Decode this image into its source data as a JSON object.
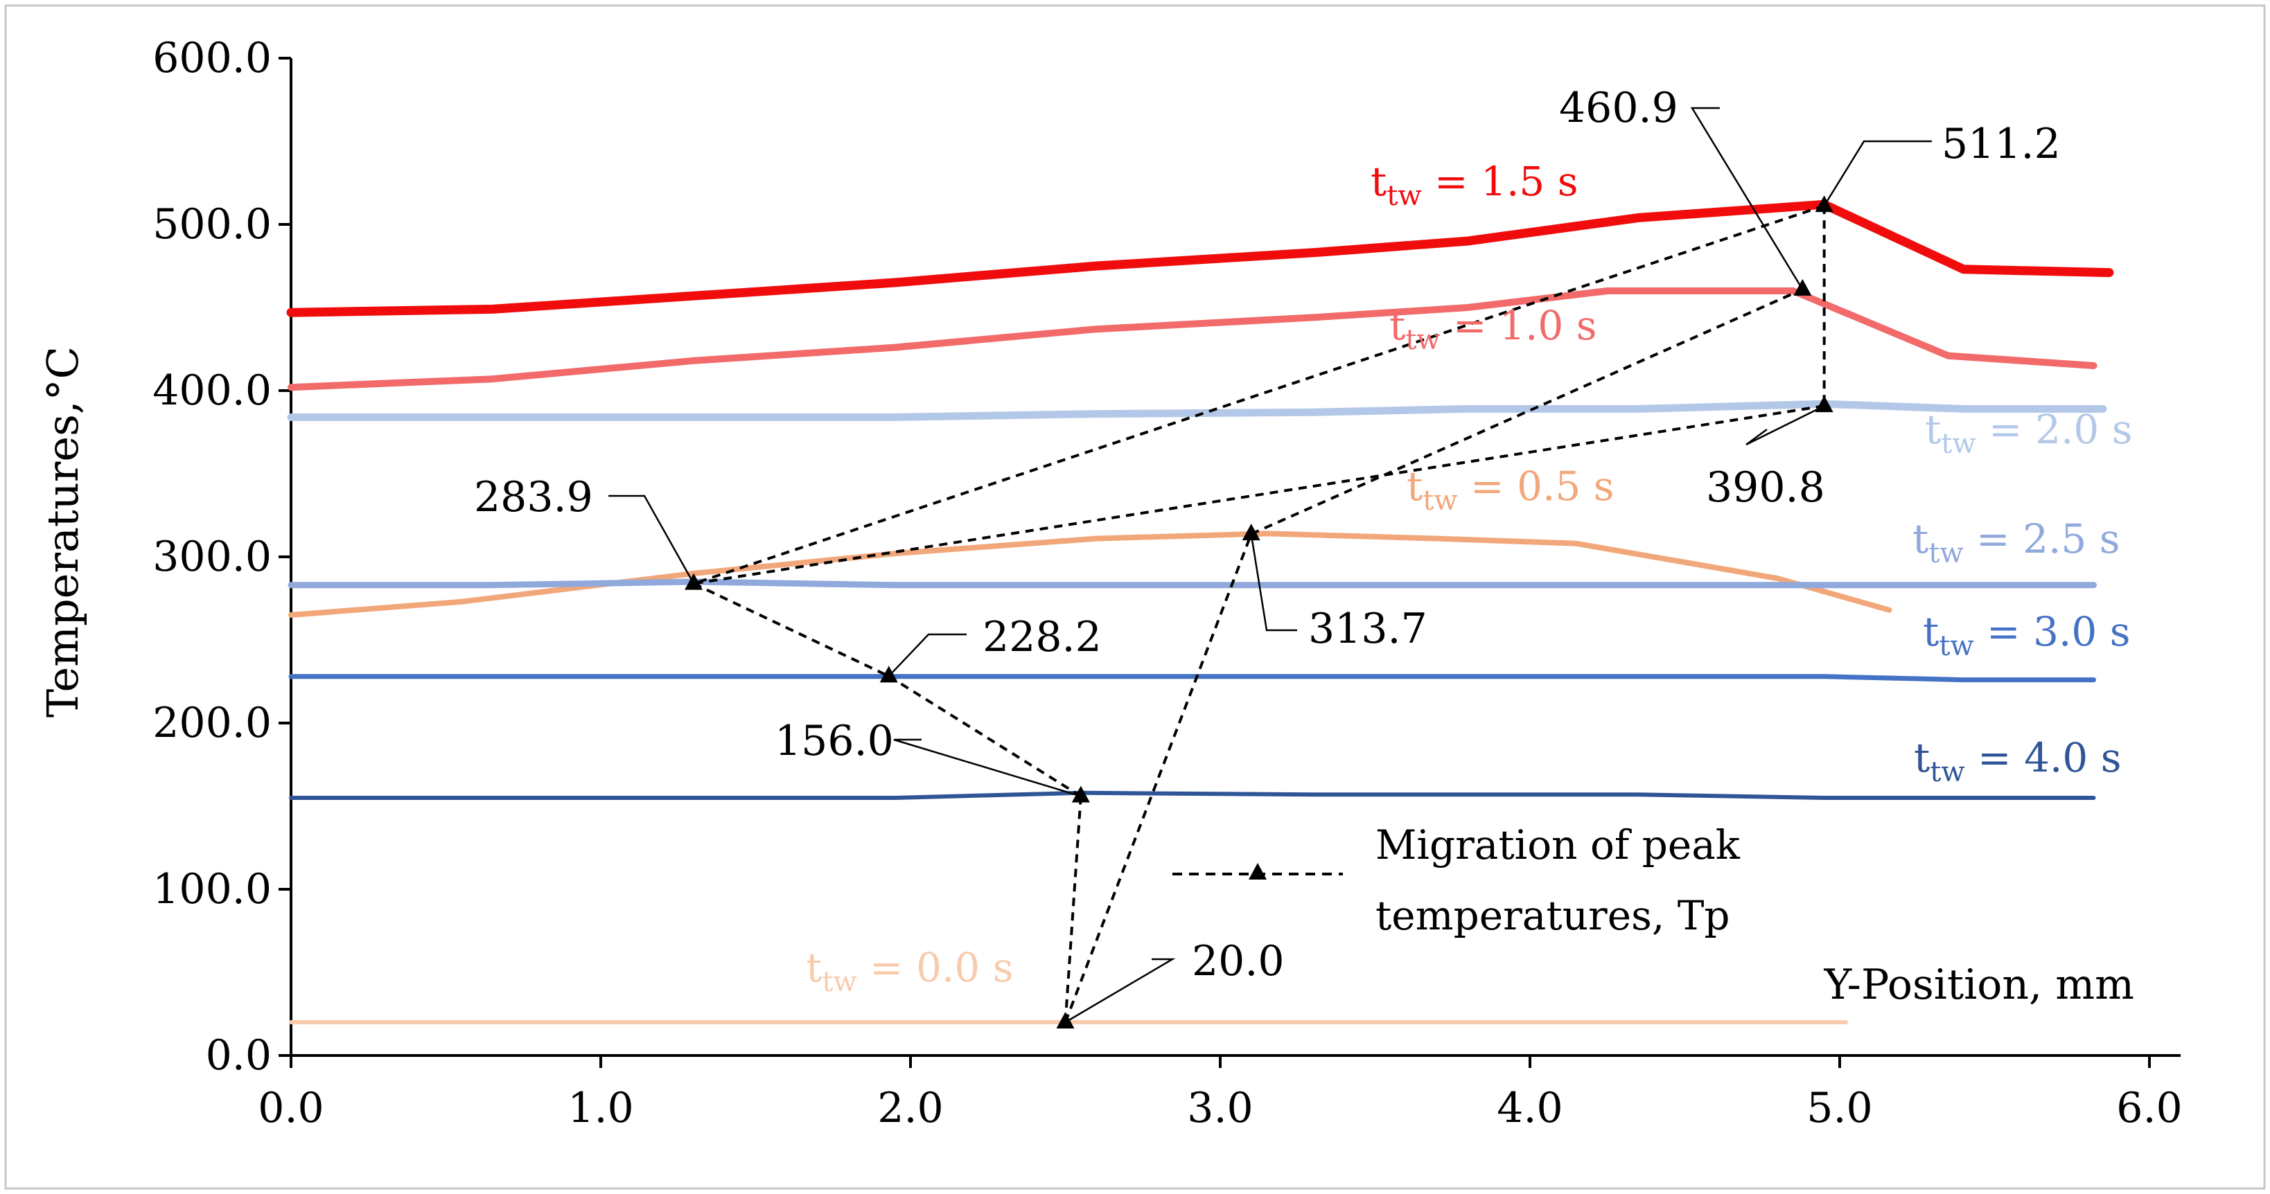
{
  "chart_data": {
    "type": "line",
    "title": "",
    "xlabel": "Y-Position, mm",
    "ylabel": "Temperatures,°C",
    "xlim": [
      0,
      6
    ],
    "ylim": [
      0,
      600
    ],
    "x_ticks": [
      "0.0",
      "1.0",
      "2.0",
      "3.0",
      "4.0",
      "5.0",
      "6.0"
    ],
    "y_ticks": [
      "0.0",
      "100.0",
      "200.0",
      "300.0",
      "400.0",
      "500.0",
      "600.0"
    ],
    "grid": false,
    "series": [
      {
        "name": "t_tw = 1.5 s",
        "label_main": "t",
        "label_sub": "tw",
        "label_rest": " = 1.5 s",
        "color": "#f00c0c",
        "width": 13,
        "x": [
          0,
          0.65,
          1.3,
          1.95,
          2.6,
          3.3,
          3.8,
          4.35,
          4.95,
          5.4,
          5.87
        ],
        "y": [
          447,
          449,
          457,
          465,
          475,
          483,
          490,
          504,
          512,
          473,
          471
        ]
      },
      {
        "name": "t_tw = 1.0 s",
        "label_main": "t",
        "label_sub": "tw",
        "label_rest": " = 1.0 s",
        "color": "#f26a6a",
        "width": 10,
        "x": [
          0,
          0.65,
          1.3,
          1.95,
          2.6,
          3.3,
          3.8,
          4.25,
          4.85,
          5.35,
          5.82
        ],
        "y": [
          402,
          407,
          418,
          426,
          437,
          444,
          450,
          460,
          460,
          421,
          415
        ]
      },
      {
        "name": "t_tw = 2.0 s",
        "label_main": "t",
        "label_sub": "tw",
        "label_rest": " = 2.0 s",
        "color": "#b3c8e8",
        "width": 11,
        "x": [
          0,
          0.65,
          1.3,
          1.95,
          2.6,
          3.3,
          3.8,
          4.35,
          4.95,
          5.4,
          5.85
        ],
        "y": [
          384,
          384,
          384,
          384,
          386,
          387,
          389,
          389,
          392,
          389,
          389
        ]
      },
      {
        "name": "t_tw = 0.5 s",
        "label_main": "t",
        "label_sub": "tw",
        "label_rest": " = 0.5 s",
        "color": "#f2a77a",
        "width": 8,
        "x": [
          0,
          0.55,
          1.3,
          1.95,
          2.6,
          3.15,
          3.7,
          4.15,
          4.8,
          5.16
        ],
        "y": [
          265,
          273,
          290,
          302,
          311,
          314,
          311,
          308,
          287,
          268
        ]
      },
      {
        "name": "t_tw = 2.5 s",
        "label_main": "t",
        "label_sub": "tw",
        "label_rest": " = 2.5 s",
        "color": "#8fa9dc",
        "width": 9,
        "x": [
          0,
          0.65,
          1.3,
          1.95,
          2.6,
          3.3,
          3.8,
          4.35,
          4.95,
          5.4,
          5.82
        ],
        "y": [
          283,
          283,
          285,
          283,
          283,
          283,
          283,
          283,
          283,
          283,
          283
        ]
      },
      {
        "name": "t_tw = 3.0 s",
        "label_main": "t",
        "label_sub": "tw",
        "label_rest": " = 3.0 s",
        "color": "#4472c4",
        "width": 7,
        "x": [
          0,
          0.65,
          1.3,
          1.95,
          2.6,
          3.3,
          3.8,
          4.35,
          4.95,
          5.4,
          5.82
        ],
        "y": [
          228,
          228,
          228,
          228,
          228,
          228,
          228,
          228,
          228,
          226,
          226
        ]
      },
      {
        "name": "t_tw = 4.0 s",
        "label_main": "t",
        "label_sub": "tw",
        "label_rest": " = 4.0 s",
        "color": "#2f5597",
        "width": 6,
        "x": [
          0,
          0.65,
          1.3,
          1.95,
          2.55,
          3.3,
          3.8,
          4.35,
          4.95,
          5.4,
          5.82
        ],
        "y": [
          155,
          155,
          155,
          155,
          158,
          157,
          157,
          157,
          155,
          155,
          155
        ]
      },
      {
        "name": "t_tw = 0.0 s",
        "label_main": "t",
        "label_sub": "tw",
        "label_rest": " = 0.0 s",
        "color": "#f8cbad",
        "width": 6,
        "x": [
          0,
          5.02
        ],
        "y": [
          20,
          20
        ]
      }
    ],
    "peak_migration": {
      "name_line1": "Migration of peak",
      "name_line2": "temperatures, Tp",
      "color": "#000000",
      "points": [
        {
          "x": 2.5,
          "y": 20.0,
          "label": "20.0"
        },
        {
          "x": 3.1,
          "y": 313.7,
          "label": "313.7"
        },
        {
          "x": 4.88,
          "y": 460.9,
          "label": "460.9"
        },
        {
          "x": 4.95,
          "y": 511.2,
          "label": "511.2"
        },
        {
          "x": 4.95,
          "y": 390.8,
          "label": "390.8"
        },
        {
          "x": 1.3,
          "y": 283.9,
          "label": "283.9"
        },
        {
          "x": 1.93,
          "y": 228.2,
          "label": "228.2"
        },
        {
          "x": 2.55,
          "y": 156.0,
          "label": "156.0"
        }
      ]
    }
  }
}
